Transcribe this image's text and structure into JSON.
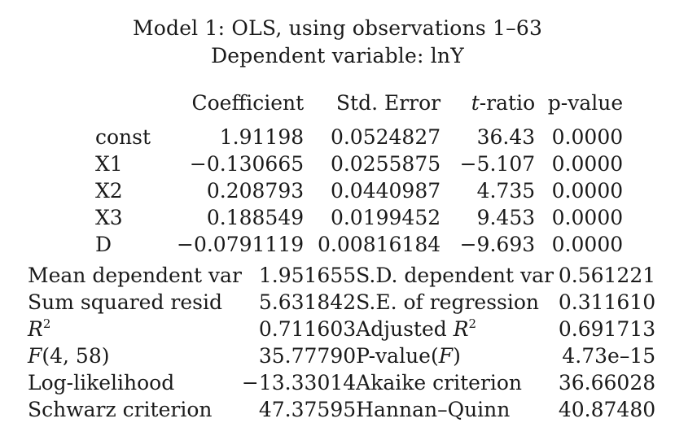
{
  "title_line1": "Model 1: OLS, using observations 1–63",
  "title_line2": "Dependent variable: lnY",
  "coef_headers": {
    "coefficient": "Coefficient",
    "std_error": "Std. Error",
    "t_ratio_t": "t",
    "t_ratio_rest": "-ratio",
    "p_value": "p-value"
  },
  "coef_rows": [
    {
      "var": "const",
      "coef": "1.91198",
      "se": "0.0524827",
      "t": "36.43",
      "p": "0.0000"
    },
    {
      "var": "X1",
      "coef": "−0.130665",
      "se": "0.0255875",
      "t": "−5.107",
      "p": "0.0000"
    },
    {
      "var": "X2",
      "coef": "0.208793",
      "se": "0.0440987",
      "t": "4.735",
      "p": "0.0000"
    },
    {
      "var": "X3",
      "coef": "0.188549",
      "se": "0.0199452",
      "t": "9.453",
      "p": "0.0000"
    },
    {
      "var": "D",
      "coef": "−0.0791119",
      "se": "0.00816184",
      "t": "−9.693",
      "p": "0.0000"
    }
  ],
  "stats": {
    "mean_dep_var_label": "Mean dependent var",
    "mean_dep_var": "1.951655",
    "sd_dep_var_label": "S.D. dependent var",
    "sd_dep_var": "0.561221",
    "ssr_label": "Sum squared resid",
    "ssr": "5.631842",
    "se_reg_label": "S.E. of regression",
    "se_reg": "0.311610",
    "r2_label_base": "R",
    "r2_label_sup": "2",
    "r2": "0.711603",
    "adj_r2_label_base": "Adjusted ",
    "adj_r2_label_r": "R",
    "adj_r2_label_sup": "2",
    "adj_r2": "0.691713",
    "f_label_f": "F",
    "f_label_args": "(4, 58)",
    "f_stat": "35.77790",
    "p_f_label_base": "P-value(",
    "p_f_label_f": "F",
    "p_f_label_close": ")",
    "p_f": "4.73e–15",
    "loglik_label": "Log-likelihood",
    "loglik": "−13.33014",
    "akaike_label": "Akaike criterion",
    "akaike": "36.66028",
    "schwarz_label": "Schwarz criterion",
    "schwarz": "47.37595",
    "hq_label": "Hannan–Quinn",
    "hq": "40.87480"
  }
}
